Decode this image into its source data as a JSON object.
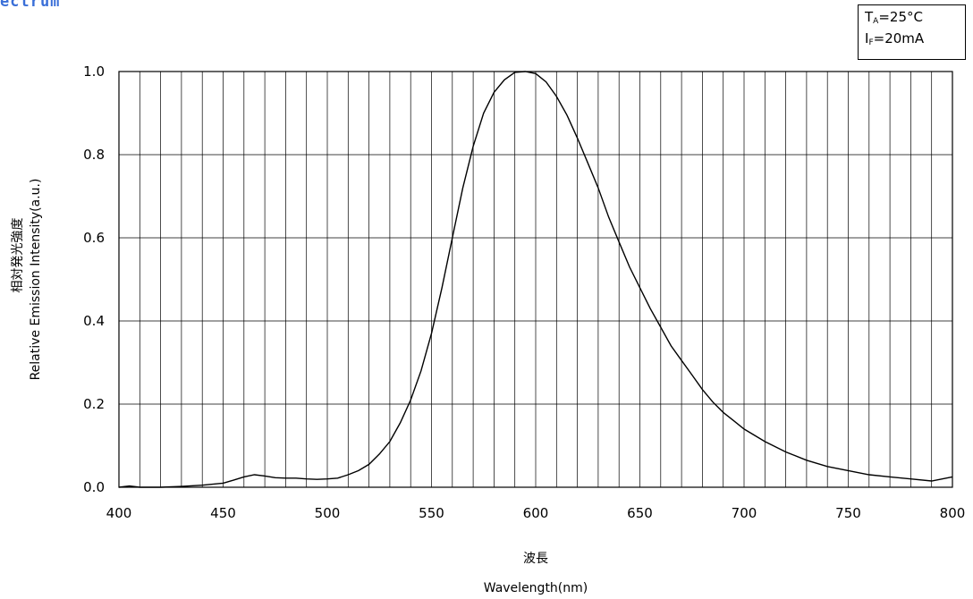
{
  "chart_data": {
    "type": "line",
    "title": "ectrum",
    "conditions": {
      "ta_symbol": "T",
      "ta_sub": "A",
      "ta_value": "=25°C",
      "if_symbol": "I",
      "if_sub": "F",
      "if_value": "=20mA"
    },
    "ylabel_jp": "相対発光強度",
    "ylabel": "Relative Emission Intensity(a.u.)",
    "xlabel_jp": "波長",
    "xlabel": "Wavelength(nm)",
    "xlim": [
      400,
      800
    ],
    "ylim": [
      0,
      1.0
    ],
    "x_ticks": [
      "400",
      "450",
      "500",
      "550",
      "600",
      "650",
      "700",
      "750",
      "800"
    ],
    "y_ticks": [
      "0.0",
      "0.2",
      "0.4",
      "0.6",
      "0.8",
      "1.0"
    ],
    "grid": true,
    "series": [
      {
        "x": [
          400,
          405,
          410,
          420,
          430,
          440,
          450,
          455,
          460,
          465,
          470,
          475,
          480,
          485,
          490,
          495,
          500,
          505,
          510,
          515,
          520,
          525,
          530,
          535,
          540,
          545,
          550,
          555,
          560,
          565,
          570,
          575,
          580,
          585,
          590,
          595,
          600,
          605,
          610,
          615,
          620,
          625,
          630,
          635,
          640,
          645,
          650,
          655,
          660,
          665,
          670,
          675,
          680,
          685,
          690,
          695,
          700,
          710,
          720,
          730,
          740,
          750,
          760,
          770,
          780,
          790,
          800
        ],
        "y": [
          0.0,
          0.003,
          0.0,
          0.0,
          0.002,
          0.005,
          0.01,
          0.017,
          0.025,
          0.03,
          0.027,
          0.023,
          0.022,
          0.022,
          0.02,
          0.019,
          0.02,
          0.022,
          0.03,
          0.04,
          0.055,
          0.08,
          0.11,
          0.155,
          0.21,
          0.28,
          0.37,
          0.48,
          0.6,
          0.72,
          0.82,
          0.9,
          0.95,
          0.98,
          0.998,
          1.0,
          0.995,
          0.975,
          0.94,
          0.895,
          0.84,
          0.78,
          0.72,
          0.65,
          0.59,
          0.53,
          0.48,
          0.43,
          0.385,
          0.34,
          0.305,
          0.27,
          0.235,
          0.205,
          0.18,
          0.16,
          0.14,
          0.11,
          0.085,
          0.065,
          0.05,
          0.04,
          0.03,
          0.025,
          0.02,
          0.015,
          0.025
        ]
      }
    ]
  }
}
